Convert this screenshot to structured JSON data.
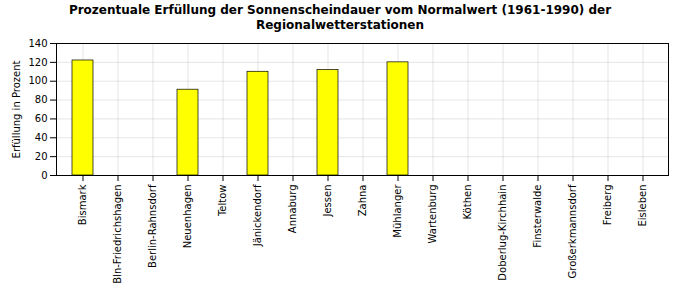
{
  "chart_data": {
    "type": "bar",
    "title": "Prozentuale Erfüllung der Sonnenscheindauer vom Normalwert (1961-1990) der\nRegionalwetterstationen",
    "y_label": "Erfüllung in Prozent",
    "categories": [
      "Bismark",
      "Bln-Friedrichshagen",
      "Berlin-Rahnsdorf",
      "Neuenhagen",
      "Teltow",
      "Jänickendorf",
      "Annaburg",
      "Jessen",
      "Zahna",
      "Mühlanger",
      "Wartenburg",
      "Köthen",
      "Doberlug-Kirchhain",
      "Finsterwalde",
      "Großerkmannsdorf",
      "Freiberg",
      "Eisleben"
    ],
    "values": [
      122,
      0,
      0,
      91,
      0,
      110,
      0,
      112,
      0,
      120,
      0,
      0,
      0,
      0,
      0,
      0,
      0
    ],
    "color": "#ffff00",
    "ylim": [
      0,
      140
    ],
    "yticks": [
      0,
      20,
      40,
      60,
      80,
      100,
      120,
      140
    ],
    "grid": true
  }
}
